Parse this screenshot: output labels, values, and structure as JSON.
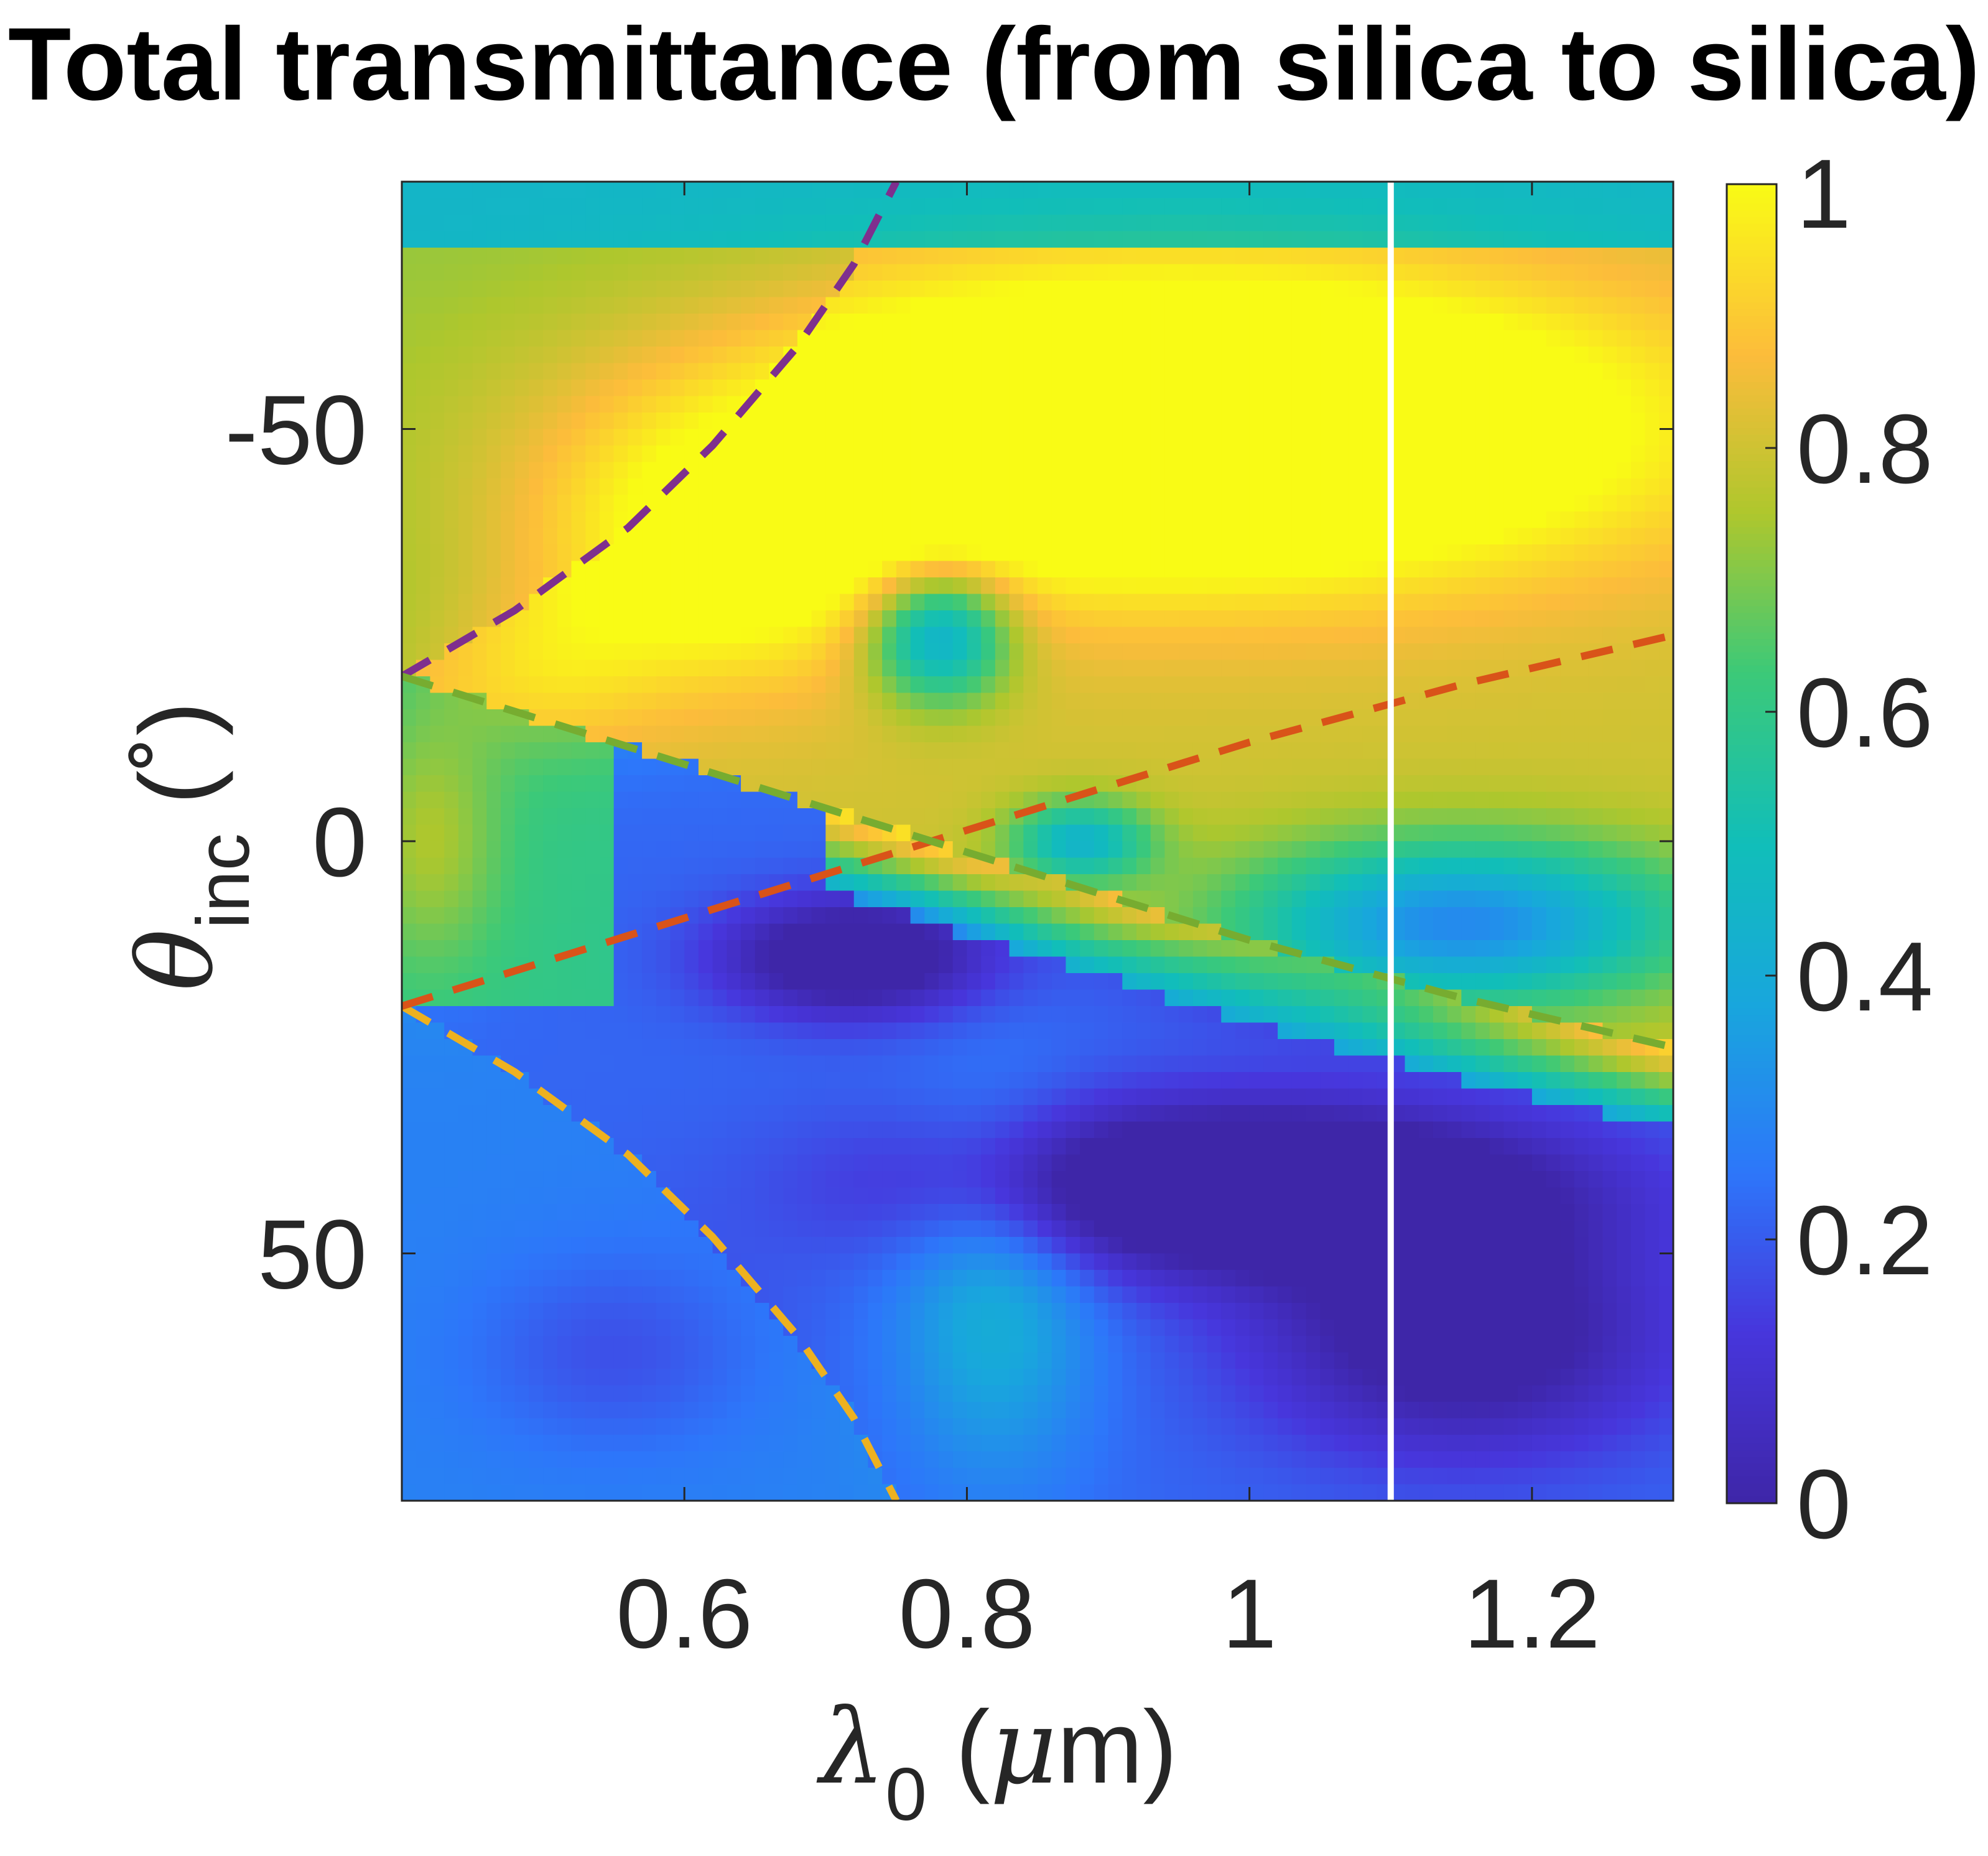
{
  "chart_data": {
    "type": "heatmap",
    "title": "Total transmittance (from silica to silica)",
    "xlabel": {
      "symbol": "λ",
      "subscript": "0",
      "unit_open": " (",
      "unit_symbol": "μ",
      "unit_rest": "m)"
    },
    "ylabel": {
      "symbol": "θ",
      "subscript": "inc",
      "unit": " (˚)"
    },
    "xlim": [
      0.4,
      1.3
    ],
    "ylim": [
      -80,
      80
    ],
    "y_reversed": true,
    "xticks": [
      0.6,
      0.8,
      1.0,
      1.2
    ],
    "xtick_labels": [
      "0.6",
      "0.8",
      "1",
      "1.2"
    ],
    "yticks": [
      -50,
      0,
      50
    ],
    "ytick_labels": [
      "-50",
      "0",
      "50"
    ],
    "colorbar": {
      "range": [
        0,
        1
      ],
      "ticks": [
        0,
        0.2,
        0.4,
        0.6,
        0.8,
        1
      ],
      "tick_labels": [
        "0",
        "0.2",
        "0.4",
        "0.6",
        "0.8",
        "1"
      ],
      "colormap": "parula"
    },
    "reference_line": {
      "x": 1.1,
      "color": "#ffffff"
    },
    "overlay_curves": [
      {
        "name": "purple-dashed-curve",
        "color": "#7e2f8e",
        "points": [
          [
            0.4,
            -20
          ],
          [
            0.48,
            -28
          ],
          [
            0.56,
            -38
          ],
          [
            0.62,
            -48
          ],
          [
            0.68,
            -60
          ],
          [
            0.72,
            -70
          ],
          [
            0.75,
            -80
          ]
        ]
      },
      {
        "name": "orange-dashed-curve",
        "color": "#edb120",
        "points": [
          [
            0.4,
            20
          ],
          [
            0.48,
            28
          ],
          [
            0.56,
            38
          ],
          [
            0.62,
            48
          ],
          [
            0.68,
            60
          ],
          [
            0.72,
            70
          ],
          [
            0.75,
            80
          ]
        ]
      },
      {
        "name": "red-dashed-curve",
        "color": "#d95319",
        "points": [
          [
            0.4,
            20
          ],
          [
            0.55,
            12
          ],
          [
            0.7,
            4
          ],
          [
            0.85,
            -4
          ],
          [
            1.0,
            -12
          ],
          [
            1.15,
            -19
          ],
          [
            1.3,
            -25
          ]
        ]
      },
      {
        "name": "green-dashed-curve",
        "color": "#77ac30",
        "points": [
          [
            0.4,
            -20
          ],
          [
            0.55,
            -12
          ],
          [
            0.7,
            -4
          ],
          [
            0.85,
            4
          ],
          [
            1.0,
            12
          ],
          [
            1.15,
            19
          ],
          [
            1.3,
            25
          ]
        ]
      }
    ],
    "features": [
      {
        "x": 0.95,
        "y": -50,
        "sx": 0.32,
        "sy": 18,
        "amp": 0.55
      },
      {
        "x": 0.62,
        "y": -35,
        "sx": 0.14,
        "sy": 16,
        "amp": 0.25
      },
      {
        "x": 1.15,
        "y": 10,
        "sx": 0.16,
        "sy": 10,
        "amp": -0.5
      },
      {
        "x": 0.88,
        "y": 0,
        "sx": 0.05,
        "sy": 5,
        "amp": -0.35
      },
      {
        "x": 0.78,
        "y": -25,
        "sx": 0.05,
        "sy": 8,
        "amp": -0.45
      },
      {
        "x": 0.5,
        "y": -20,
        "sx": 0.08,
        "sy": 10,
        "amp": 0.1
      },
      {
        "x": 0.72,
        "y": 14,
        "sx": 0.09,
        "sy": 7,
        "amp": -0.35
      },
      {
        "x": 1.0,
        "y": 42,
        "sx": 0.22,
        "sy": 10,
        "amp": -0.45
      },
      {
        "x": 1.15,
        "y": 60,
        "sx": 0.14,
        "sy": 14,
        "amp": -0.3
      },
      {
        "x": 0.55,
        "y": 62,
        "sx": 0.1,
        "sy": 12,
        "amp": -0.1
      },
      {
        "x": 0.82,
        "y": 55,
        "sx": 0.07,
        "sy": 22,
        "amp": 0.2
      },
      {
        "x": 0.42,
        "y": 0,
        "sx": 0.05,
        "sy": 15,
        "amp": 0.15
      }
    ]
  }
}
